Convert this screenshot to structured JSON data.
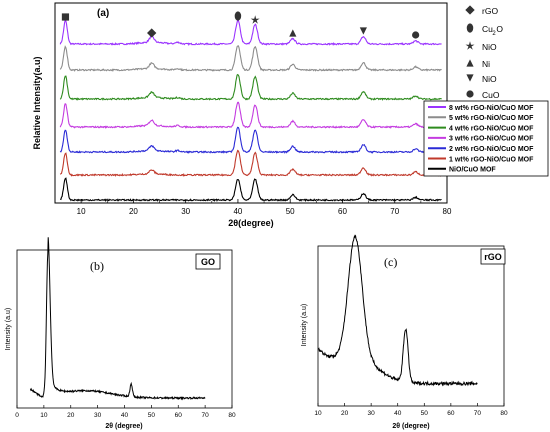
{
  "chart_data": [
    {
      "panel": "(a)",
      "type": "line",
      "title": "",
      "xlabel": "2θ(degree)",
      "ylabel": "Relative Intensity(a.u)",
      "xlim": [
        5,
        80
      ],
      "x_ticks": [
        "10",
        "20",
        "30",
        "40",
        "50",
        "60",
        "70",
        "80"
      ],
      "series_order_top_to_bottom": [
        "8 wt% rGO-NiO/CuO MOF",
        "5 wt% rGO-NiO/CuO MOF",
        "4 wt% rGO-NiO/CuO MOF",
        "3 wt% rGO-NiO/CuO MOF",
        "2 wt% rGO-NiO/CuO MOF",
        "1 wt% rGO-NiO/CuO MOF",
        "NiO/CuO MOF"
      ],
      "series": [
        {
          "name": "8 wt% rGO-NiO/CuO MOF",
          "color": "#9a33ff",
          "peaks": [
            {
              "x": 7.0,
              "h": 0.9
            },
            {
              "x": 23.5,
              "h": 0.22
            },
            {
              "x": 28.5,
              "h": 0.06
            },
            {
              "x": 40.0,
              "h": 0.9
            },
            {
              "x": 43.3,
              "h": 0.75
            },
            {
              "x": 50.5,
              "h": 0.2
            },
            {
              "x": 64.0,
              "h": 0.28
            },
            {
              "x": 74.0,
              "h": 0.12
            }
          ]
        },
        {
          "name": "5 wt% rGO-NiO/CuO MOF",
          "color": "#8c8c8c",
          "peaks": [
            {
              "x": 7.0,
              "h": 0.9
            },
            {
              "x": 23.5,
              "h": 0.2
            },
            {
              "x": 28.5,
              "h": 0.05
            },
            {
              "x": 40.0,
              "h": 0.95
            },
            {
              "x": 43.3,
              "h": 0.9
            },
            {
              "x": 50.5,
              "h": 0.22
            },
            {
              "x": 64.0,
              "h": 0.28
            },
            {
              "x": 74.0,
              "h": 0.12
            }
          ]
        },
        {
          "name": "4 wt% rGO-NiO/CuO MOF",
          "color": "#2e8b1e",
          "peaks": [
            {
              "x": 7.0,
              "h": 0.9
            },
            {
              "x": 23.5,
              "h": 0.2
            },
            {
              "x": 28.5,
              "h": 0.05
            },
            {
              "x": 40.0,
              "h": 0.95
            },
            {
              "x": 43.3,
              "h": 0.85
            },
            {
              "x": 50.5,
              "h": 0.22
            },
            {
              "x": 64.0,
              "h": 0.28
            },
            {
              "x": 74.0,
              "h": 0.12
            }
          ]
        },
        {
          "name": "3 wt% rGO-NiO/CuO MOF",
          "color": "#c43ce0",
          "peaks": [
            {
              "x": 7.0,
              "h": 0.9
            },
            {
              "x": 23.5,
              "h": 0.2
            },
            {
              "x": 28.5,
              "h": 0.05
            },
            {
              "x": 40.0,
              "h": 0.95
            },
            {
              "x": 43.3,
              "h": 0.85
            },
            {
              "x": 50.5,
              "h": 0.22
            },
            {
              "x": 64.0,
              "h": 0.28
            },
            {
              "x": 74.0,
              "h": 0.12
            }
          ]
        },
        {
          "name": "2 wt% rGO-NiO/CuO MOF",
          "color": "#2a2ad6",
          "peaks": [
            {
              "x": 7.0,
              "h": 0.85
            },
            {
              "x": 23.5,
              "h": 0.18
            },
            {
              "x": 28.5,
              "h": 0.05
            },
            {
              "x": 40.0,
              "h": 0.95
            },
            {
              "x": 43.3,
              "h": 0.85
            },
            {
              "x": 50.5,
              "h": 0.22
            },
            {
              "x": 64.0,
              "h": 0.28
            },
            {
              "x": 74.0,
              "h": 0.12
            }
          ]
        },
        {
          "name": "1 wt% rGO-NiO/CuO MOF",
          "color": "#c0392b",
          "peaks": [
            {
              "x": 7.0,
              "h": 0.85
            },
            {
              "x": 23.5,
              "h": 0.15
            },
            {
              "x": 40.0,
              "h": 0.95
            },
            {
              "x": 43.3,
              "h": 0.85
            },
            {
              "x": 50.5,
              "h": 0.22
            },
            {
              "x": 64.0,
              "h": 0.28
            },
            {
              "x": 74.0,
              "h": 0.12
            }
          ]
        },
        {
          "name": "NiO/CuO MOF",
          "color": "#000000",
          "peaks": [
            {
              "x": 7.0,
              "h": 0.85
            },
            {
              "x": 40.0,
              "h": 0.8
            },
            {
              "x": 43.3,
              "h": 0.8
            },
            {
              "x": 50.5,
              "h": 0.2
            },
            {
              "x": 64.0,
              "h": 0.25
            },
            {
              "x": 74.0,
              "h": 0.1
            }
          ]
        }
      ],
      "peak_markers": [
        {
          "x": 7.0,
          "symbol": "square"
        },
        {
          "x": 23.5,
          "symbol": "diamond"
        },
        {
          "x": 40.0,
          "symbol": "hexagon"
        },
        {
          "x": 43.3,
          "symbol": "star"
        },
        {
          "x": 50.5,
          "symbol": "triangle"
        },
        {
          "x": 64.0,
          "symbol": "inverted-triangle"
        },
        {
          "x": 74.0,
          "symbol": "circle"
        }
      ],
      "marker_legend": [
        {
          "symbol": "diamond",
          "label": "rGO"
        },
        {
          "symbol": "hexagon",
          "label": "Cu",
          "sub": "2",
          "suffix": "O"
        },
        {
          "symbol": "star",
          "label": "NiO"
        },
        {
          "symbol": "triangle",
          "label": "Ni"
        },
        {
          "symbol": "inverted-triangle",
          "label": "NiO"
        },
        {
          "symbol": "circle",
          "label": "CuO"
        }
      ],
      "legend_placement": "right"
    },
    {
      "panel": "(b)",
      "type": "line",
      "title": "GO",
      "xlabel": "2θ (degree)",
      "ylabel": "Intensity (a.u)",
      "xlim": [
        0,
        80
      ],
      "x_ticks": [
        "0",
        "10",
        "20",
        "30",
        "40",
        "50",
        "60",
        "70",
        "80"
      ],
      "peaks": [
        {
          "x": 11.5,
          "h": 1.0
        },
        {
          "x": 26.0,
          "h": 0.05
        },
        {
          "x": 42.5,
          "h": 0.09
        }
      ],
      "x_end": 70
    },
    {
      "panel": "(c)",
      "type": "line",
      "title": "rGO",
      "xlabel": "2θ (degree)",
      "ylabel": "Intensity (a.u)",
      "xlim": [
        10,
        80
      ],
      "x_ticks": [
        "10",
        "20",
        "30",
        "40",
        "50",
        "60",
        "70",
        "80"
      ],
      "peaks": [
        {
          "x": 24.0,
          "h": 0.85
        },
        {
          "x": 43.0,
          "h": 0.38
        }
      ],
      "x_end": 70
    }
  ]
}
